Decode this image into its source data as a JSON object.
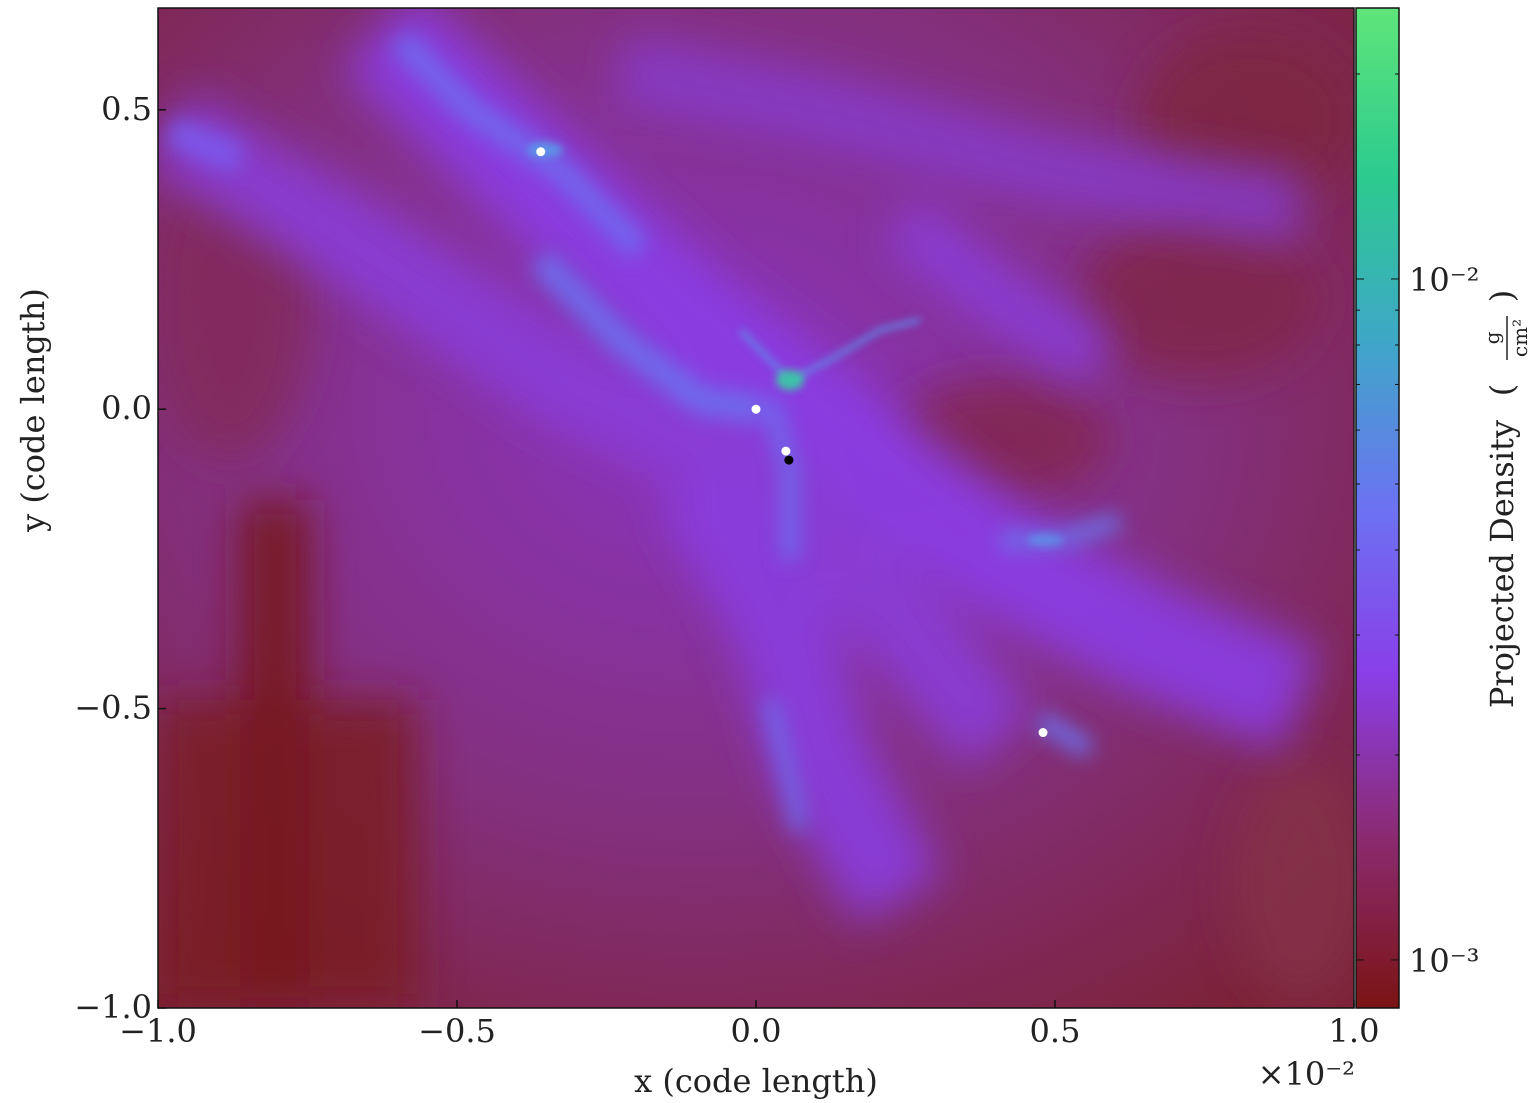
{
  "chart_data": {
    "type": "heatmap",
    "title": "",
    "xlabel": "x  (code length)",
    "ylabel": "y  (code length)",
    "x_ticks": [
      -1.0,
      -0.5,
      0.0,
      0.5,
      1.0
    ],
    "x_tick_labels": [
      "−1.0",
      "−0.5",
      "0.0",
      "0.5",
      "1.0"
    ],
    "y_ticks": [
      0.5,
      0.0,
      -0.5,
      -1.0
    ],
    "y_tick_labels": [
      "0.5",
      "0.0",
      "−0.5",
      "−1.0"
    ],
    "x_offset_label": "×10⁻²",
    "xlim": [
      -1.0,
      1.0
    ],
    "ylim": [
      -1.0,
      0.67
    ],
    "colorbar": {
      "label": "Projected Density",
      "units_numerator": "g",
      "units_denominator": "cm²",
      "scale": "log",
      "range": [
        0.00085,
        0.025
      ],
      "tick_values": [
        0.01,
        0.001
      ],
      "tick_labels": [
        "10⁻²",
        "10⁻³"
      ],
      "colors": [
        "#7a1414",
        "#8b2a6e",
        "#8a3ee8",
        "#6c72f2",
        "#3ea7c8",
        "#2ccb8e",
        "#5fe57a"
      ]
    },
    "points": [
      {
        "x": -0.36,
        "y": 0.43,
        "color": "#ffffff"
      },
      {
        "x": 0.0,
        "y": 0.0,
        "color": "#ffffff"
      },
      {
        "x": 0.05,
        "y": -0.07,
        "color": "#ffffff"
      },
      {
        "x": 0.055,
        "y": -0.085,
        "color": "#000000"
      },
      {
        "x": 0.48,
        "y": -0.54,
        "color": "#ffffff"
      }
    ]
  }
}
